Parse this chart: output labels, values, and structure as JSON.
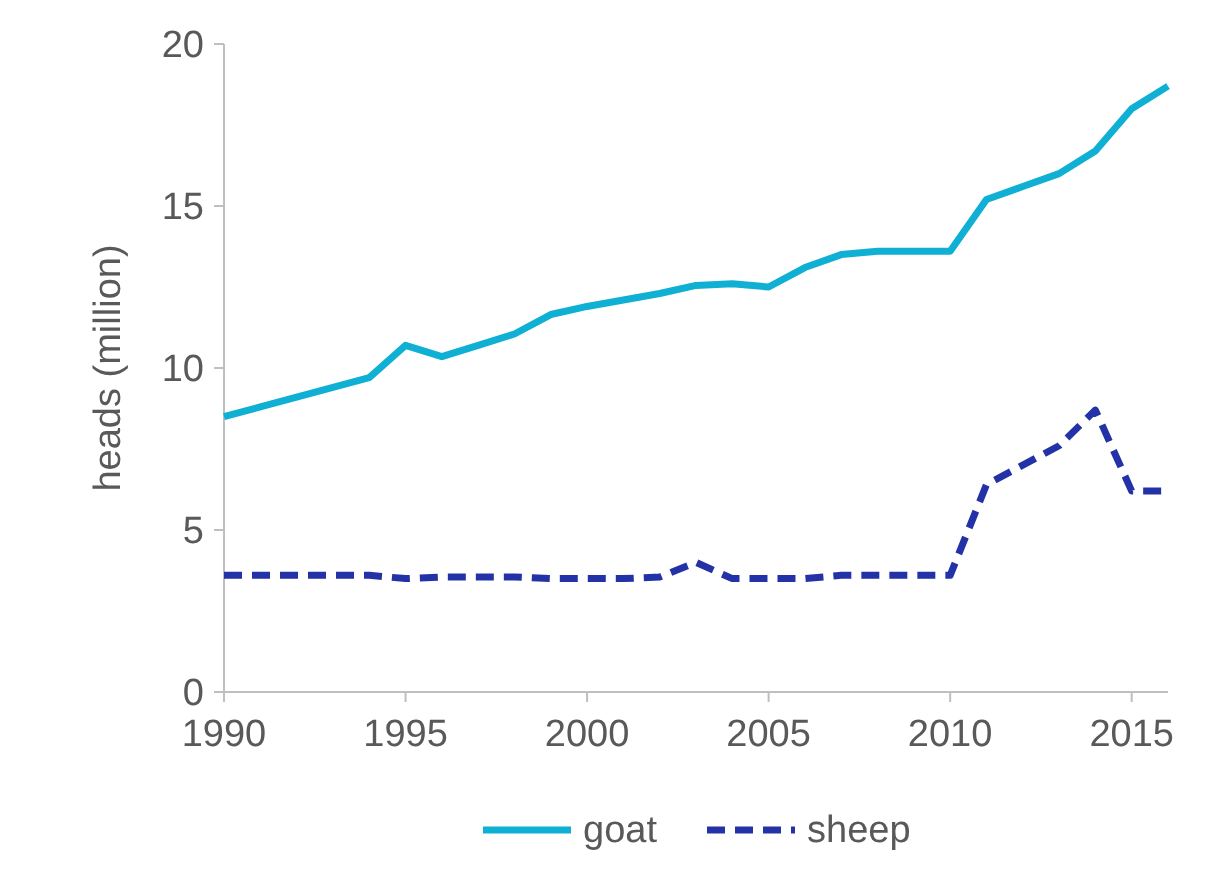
{
  "chart_data": {
    "type": "line",
    "ylabel": "heads (million)",
    "x": [
      1990,
      1991,
      1992,
      1993,
      1994,
      1995,
      1996,
      1997,
      1998,
      1999,
      2000,
      2001,
      2002,
      2003,
      2004,
      2005,
      2006,
      2007,
      2008,
      2009,
      2010,
      2011,
      2012,
      2013,
      2014,
      2015,
      2016
    ],
    "xlim": [
      1990,
      2016
    ],
    "xticks": [
      1990,
      1995,
      2000,
      2005,
      2010,
      2015
    ],
    "ylim": [
      0,
      20
    ],
    "yticks": [
      0,
      5,
      10,
      15,
      20
    ],
    "grid": false,
    "legend": "bottom",
    "marker": "none",
    "series": [
      {
        "name": "goat",
        "color": "#0fb0d4",
        "line_style": "solid",
        "values": [
          8.5,
          8.8,
          9.1,
          9.4,
          9.7,
          10.7,
          10.35,
          10.7,
          11.05,
          11.65,
          11.9,
          12.1,
          12.3,
          12.55,
          12.6,
          12.5,
          13.1,
          13.5,
          13.6,
          13.6,
          13.6,
          15.2,
          15.6,
          16.0,
          16.7,
          18.0,
          18.7
        ]
      },
      {
        "name": "sheep",
        "color": "#2432a8",
        "line_style": "dashed",
        "values": [
          3.6,
          3.6,
          3.6,
          3.6,
          3.6,
          3.5,
          3.55,
          3.55,
          3.55,
          3.5,
          3.5,
          3.5,
          3.55,
          4.0,
          3.5,
          3.5,
          3.5,
          3.6,
          3.6,
          3.6,
          3.6,
          6.4,
          7.0,
          7.6,
          8.7,
          6.2,
          6.2
        ]
      }
    ]
  }
}
